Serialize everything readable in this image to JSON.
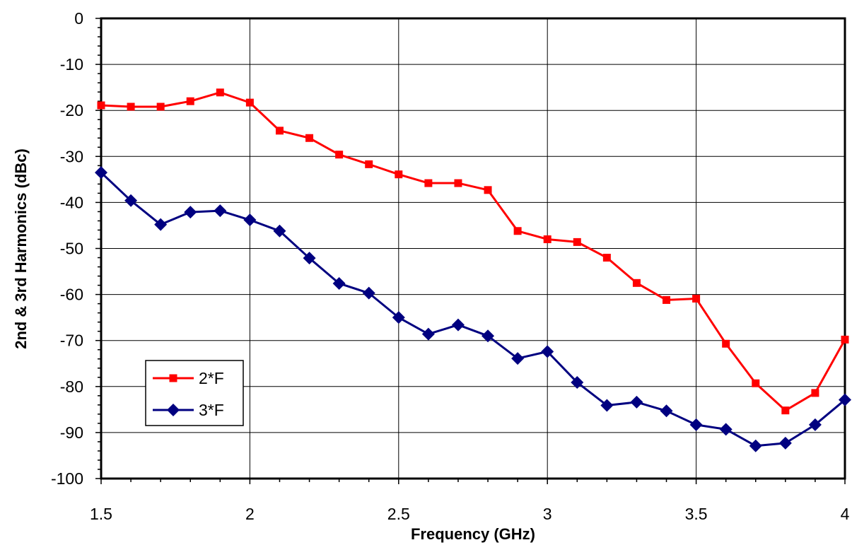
{
  "chart_data": {
    "type": "line",
    "title": "",
    "xlabel": "Frequency (GHz)",
    "ylabel": "2nd & 3rd Harmonics (dBc)",
    "xlim": [
      1.5,
      4
    ],
    "ylim": [
      -100,
      0
    ],
    "xticks": [
      "1.5",
      "2",
      "2.5",
      "3",
      "3.5",
      "4"
    ],
    "xtick_values": [
      1.5,
      2,
      2.5,
      3,
      3.5,
      4
    ],
    "yticks": [
      "0",
      "-10",
      "-20",
      "-30",
      "-40",
      "-50",
      "-60",
      "-70",
      "-80",
      "-90",
      "-100"
    ],
    "ytick_values": [
      0,
      -10,
      -20,
      -30,
      -40,
      -50,
      -60,
      -70,
      -80,
      -90,
      -100
    ],
    "grid": true,
    "legend_position": "bottom-left",
    "x": [
      1.5,
      1.6,
      1.7,
      1.8,
      1.9,
      2.0,
      2.1,
      2.2,
      2.3,
      2.4,
      2.5,
      2.6,
      2.7,
      2.8,
      2.9,
      3.0,
      3.1,
      3.2,
      3.3,
      3.4,
      3.5,
      3.6,
      3.7,
      3.8,
      3.9,
      4.0
    ],
    "series": [
      {
        "name": "2*F",
        "color": "#ff0000",
        "marker": "square",
        "values": [
          -18.9,
          -19.2,
          -19.2,
          -18.0,
          -16.1,
          -18.3,
          -24.4,
          -26.0,
          -29.6,
          -31.7,
          -33.9,
          -35.8,
          -35.8,
          -37.3,
          -46.2,
          -48.0,
          -48.6,
          -52.0,
          -57.5,
          -61.2,
          -60.9,
          -70.7,
          -79.3,
          -85.2,
          -81.4,
          -69.8
        ]
      },
      {
        "name": "3*F",
        "color": "#000080",
        "marker": "diamond",
        "values": [
          -33.5,
          -39.6,
          -44.8,
          -42.1,
          -41.8,
          -43.8,
          -46.2,
          -52.1,
          -57.6,
          -59.7,
          -65.0,
          -68.6,
          -66.6,
          -69.0,
          -73.9,
          -72.4,
          -79.1,
          -84.1,
          -83.4,
          -85.3,
          -88.3,
          -89.3,
          -92.9,
          -92.3,
          -88.3,
          -82.9
        ]
      }
    ]
  }
}
